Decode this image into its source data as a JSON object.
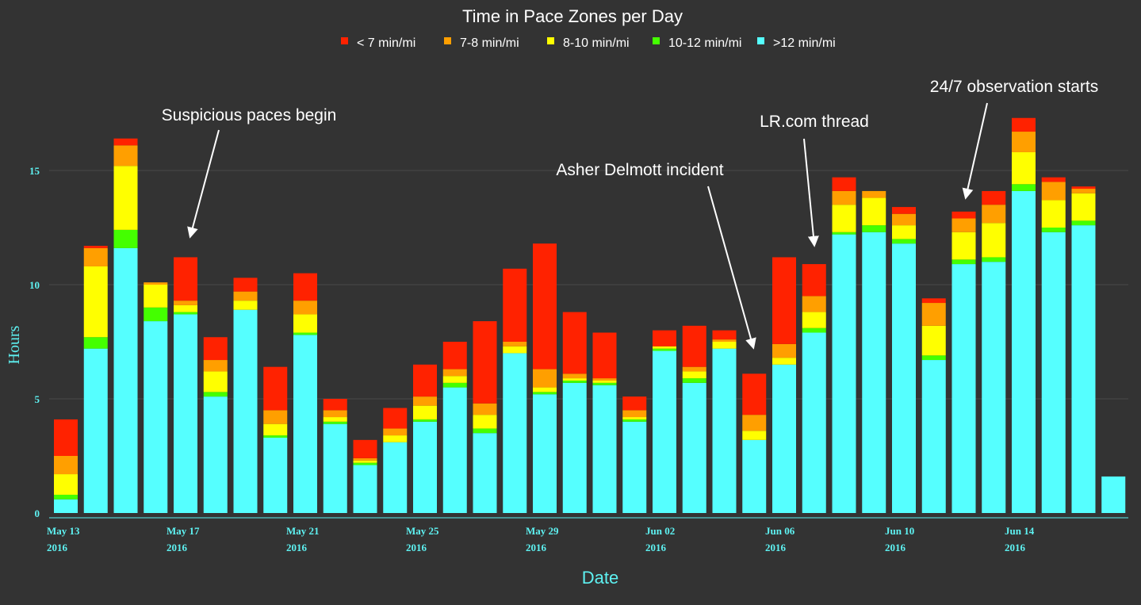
{
  "chart_data": {
    "type": "bar",
    "stacked": true,
    "title": "Time in Pace Zones per Day",
    "xlabel": "Date",
    "ylabel": "Hours",
    "ylim": [
      0,
      17.5
    ],
    "yticks": [
      0,
      5,
      10,
      15
    ],
    "grid": true,
    "legend_position": "top-center",
    "x_tick_labels": [
      {
        "index": 0,
        "line1": "May 13",
        "line2": "2016"
      },
      {
        "index": 4,
        "line1": "May 17",
        "line2": "2016"
      },
      {
        "index": 8,
        "line1": "May 21",
        "line2": "2016"
      },
      {
        "index": 12,
        "line1": "May 25",
        "line2": "2016"
      },
      {
        "index": 16,
        "line1": "May 29",
        "line2": "2016"
      },
      {
        "index": 20,
        "line1": "Jun 02",
        "line2": "2016"
      },
      {
        "index": 24,
        "line1": "Jun 06",
        "line2": "2016"
      },
      {
        "index": 28,
        "line1": "Jun 10",
        "line2": "2016"
      },
      {
        "index": 32,
        "line1": "Jun 14",
        "line2": "2016"
      }
    ],
    "categories": [
      "2016-05-13",
      "2016-05-14",
      "2016-05-15",
      "2016-05-16",
      "2016-05-17",
      "2016-05-18",
      "2016-05-19",
      "2016-05-20",
      "2016-05-21",
      "2016-05-22",
      "2016-05-23",
      "2016-05-24",
      "2016-05-25",
      "2016-05-26",
      "2016-05-27",
      "2016-05-28",
      "2016-05-29",
      "2016-05-30",
      "2016-05-31",
      "2016-06-01",
      "2016-06-02",
      "2016-06-03",
      "2016-06-04",
      "2016-06-05",
      "2016-06-06",
      "2016-06-07",
      "2016-06-08",
      "2016-06-09",
      "2016-06-10",
      "2016-06-11",
      "2016-06-12",
      "2016-06-13",
      "2016-06-14",
      "2016-06-15",
      "2016-06-16",
      "2016-06-17"
    ],
    "series": [
      {
        "name": ">12 min/mi",
        "color": "#55ffff",
        "values": [
          0.6,
          7.2,
          11.6,
          8.4,
          8.7,
          5.1,
          8.9,
          3.3,
          7.8,
          3.9,
          2.1,
          3.1,
          4.0,
          5.5,
          3.5,
          7.0,
          5.2,
          5.7,
          5.6,
          4.0,
          7.1,
          5.7,
          7.2,
          3.2,
          6.5,
          7.9,
          12.2,
          12.3,
          11.8,
          6.7,
          10.9,
          11.0,
          14.1,
          12.3,
          12.6,
          1.6
        ]
      },
      {
        "name": "10-12 min/mi",
        "color": "#44ff00",
        "values": [
          0.2,
          0.5,
          0.8,
          0.6,
          0.1,
          0.2,
          0.0,
          0.1,
          0.1,
          0.1,
          0.1,
          0.0,
          0.1,
          0.2,
          0.2,
          0.0,
          0.1,
          0.1,
          0.1,
          0.1,
          0.1,
          0.2,
          0.0,
          0.0,
          0.0,
          0.2,
          0.1,
          0.3,
          0.2,
          0.2,
          0.2,
          0.2,
          0.3,
          0.2,
          0.2,
          0.0
        ]
      },
      {
        "name": "8-10 min/mi",
        "color": "#ffff00",
        "values": [
          0.9,
          3.1,
          2.8,
          1.0,
          0.3,
          0.9,
          0.4,
          0.5,
          0.8,
          0.2,
          0.1,
          0.3,
          0.6,
          0.3,
          0.6,
          0.3,
          0.2,
          0.1,
          0.1,
          0.1,
          0.1,
          0.3,
          0.3,
          0.4,
          0.3,
          0.7,
          1.2,
          1.2,
          0.6,
          1.3,
          1.2,
          1.5,
          1.4,
          1.2,
          1.2,
          0.0
        ]
      },
      {
        "name": "7-8 min/mi",
        "color": "#ff9f00",
        "values": [
          0.8,
          0.8,
          0.9,
          0.1,
          0.2,
          0.5,
          0.4,
          0.6,
          0.6,
          0.3,
          0.1,
          0.3,
          0.4,
          0.3,
          0.5,
          0.2,
          0.8,
          0.2,
          0.1,
          0.3,
          0.0,
          0.2,
          0.1,
          0.7,
          0.6,
          0.7,
          0.6,
          0.3,
          0.5,
          1.0,
          0.6,
          0.8,
          0.9,
          0.8,
          0.2,
          0.0
        ]
      },
      {
        "name": "< 7 min/mi",
        "color": "#ff2200",
        "values": [
          1.6,
          0.1,
          0.3,
          0.0,
          1.9,
          1.0,
          0.6,
          1.9,
          1.2,
          0.5,
          0.8,
          0.9,
          1.4,
          1.2,
          3.6,
          3.2,
          5.5,
          2.7,
          2.0,
          0.6,
          0.7,
          1.8,
          0.4,
          1.8,
          3.8,
          1.4,
          0.6,
          0.0,
          0.3,
          0.2,
          0.3,
          0.6,
          0.6,
          0.2,
          0.1,
          0.0
        ]
      }
    ],
    "legend_order": [
      "< 7 min/mi",
      "7-8 min/mi",
      "8-10 min/mi",
      "10-12 min/mi",
      ">12 min/mi"
    ],
    "annotations": [
      {
        "text": "Suspicious paces begin",
        "bar_index": 4
      },
      {
        "text": "Asher Delmott incident",
        "bar_index": 23
      },
      {
        "text": "LR.com thread",
        "bar_index": 25
      },
      {
        "text": "24/7 observation starts",
        "bar_index": 30
      }
    ]
  },
  "colors": {
    "background": "#333333",
    "axis": "#5ef2f2",
    "grid": "#4a4a4a",
    "text": "#ffffff"
  }
}
